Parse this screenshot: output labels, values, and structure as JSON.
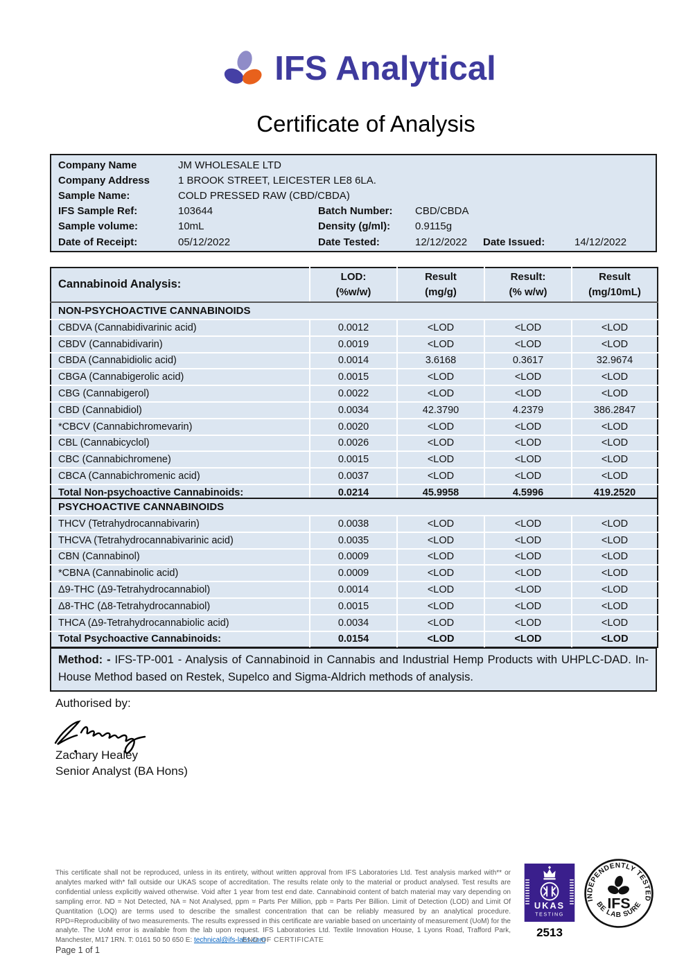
{
  "header": {
    "brand": "IFS Analytical",
    "title": "Certificate of Analysis"
  },
  "colors": {
    "brand_purple": "#3e3a9d",
    "blob_light": "#8f8cc8",
    "blob_dark": "#4540a5",
    "blob_orange": "#e8611c",
    "table_fill": "#dce6f1",
    "ukas_purple": "#3a1f8c",
    "link_blue": "#0563c1"
  },
  "info": {
    "rows": [
      {
        "label": "Company Name",
        "value": "JM WHOLESALE LTD"
      },
      {
        "label": "Company Address",
        "value": "1 BROOK STREET, LEICESTER LE8 6LA."
      },
      {
        "label": "Sample Name:",
        "value": "COLD PRESSED RAW (CBD/CBDA)"
      },
      {
        "label": "IFS Sample Ref:",
        "value": "103644",
        "label2": "Batch Number:",
        "value2": "CBD/CBDA"
      },
      {
        "label": "Sample volume:",
        "value": "10mL",
        "label2": "Density (g/ml):",
        "value2": "0.9115g"
      },
      {
        "label": "Date of Receipt:",
        "value": "05/12/2022",
        "label2": "Date Tested:",
        "value2": "12/12/2022",
        "label3": "Date Issued:",
        "value3": "14/12/2022"
      }
    ]
  },
  "analysis": {
    "title": "Cannabinoid Analysis:",
    "col_headers": [
      {
        "line1": "LOD:",
        "line2": "(%w/w)"
      },
      {
        "line1": "Result",
        "line2": "(mg/g)"
      },
      {
        "line1": "Result:",
        "line2": "(% w/w)"
      },
      {
        "line1": "Result",
        "line2": "(mg/10mL)"
      }
    ],
    "sections": [
      {
        "name": "NON-PSYCHOACTIVE CANNABINOIDS",
        "rows": [
          {
            "analyte": "CBDVA (Cannabidivarinic acid)",
            "values": [
              "0.0012",
              "<LOD",
              "<LOD",
              "<LOD"
            ]
          },
          {
            "analyte": "CBDV (Cannabidivarin)",
            "values": [
              "0.0019",
              "<LOD",
              "<LOD",
              "<LOD"
            ]
          },
          {
            "analyte": "CBDA (Cannabidiolic acid)",
            "values": [
              "0.0014",
              "3.6168",
              "0.3617",
              "32.9674"
            ]
          },
          {
            "analyte": "CBGA (Cannabigerolic acid)",
            "values": [
              "0.0015",
              "<LOD",
              "<LOD",
              "<LOD"
            ]
          },
          {
            "analyte": "CBG (Cannabigerol)",
            "values": [
              "0.0022",
              "<LOD",
              "<LOD",
              "<LOD"
            ]
          },
          {
            "analyte": "CBD (Cannabidiol)",
            "values": [
              "0.0034",
              "42.3790",
              "4.2379",
              "386.2847"
            ]
          },
          {
            "analyte": "*CBCV (Cannabichromevarin)",
            "values": [
              "0.0020",
              "<LOD",
              "<LOD",
              "<LOD"
            ]
          },
          {
            "analyte": "CBL (Cannabicyclol)",
            "values": [
              "0.0026",
              "<LOD",
              "<LOD",
              "<LOD"
            ]
          },
          {
            "analyte": "CBC (Cannabichromene)",
            "values": [
              "0.0015",
              "<LOD",
              "<LOD",
              "<LOD"
            ]
          },
          {
            "analyte": "CBCA (Cannabichromenic acid)",
            "values": [
              "0.0037",
              "<LOD",
              "<LOD",
              "<LOD"
            ]
          }
        ],
        "total": {
          "analyte": "Total Non-psychoactive Cannabinoids:",
          "values": [
            "0.0214",
            "45.9958",
            "4.5996",
            "419.2520"
          ]
        }
      },
      {
        "name": "PSYCHOACTIVE CANNABINOIDS",
        "rows": [
          {
            "analyte": "THCV (Tetrahydrocannabivarin)",
            "values": [
              "0.0038",
              "<LOD",
              "<LOD",
              "<LOD"
            ]
          },
          {
            "analyte": "THCVA (Tetrahydrocannabivarinic acid)",
            "values": [
              "0.0035",
              "<LOD",
              "<LOD",
              "<LOD"
            ]
          },
          {
            "analyte": "CBN (Cannabinol)",
            "values": [
              "0.0009",
              "<LOD",
              "<LOD",
              "<LOD"
            ]
          },
          {
            "analyte": "*CBNA (Cannabinolic acid)",
            "values": [
              "0.0009",
              "<LOD",
              "<LOD",
              "<LOD"
            ]
          },
          {
            "analyte": "Δ9-THC (Δ9-Tetrahydrocannabiol)",
            "values": [
              "0.0014",
              "<LOD",
              "<LOD",
              "<LOD"
            ]
          },
          {
            "analyte": "Δ8-THC (Δ8-Tetrahydrocannabiol)",
            "values": [
              "0.0015",
              "<LOD",
              "<LOD",
              "<LOD"
            ]
          },
          {
            "analyte": "THCA (Δ9-Tetrahydrocannabiolic acid)",
            "values": [
              "0.0034",
              "<LOD",
              "<LOD",
              "<LOD"
            ]
          }
        ],
        "total": {
          "analyte": "Total Psychoactive Cannabinoids:",
          "values": [
            "0.0154",
            "<LOD",
            "<LOD",
            "<LOD"
          ]
        }
      }
    ]
  },
  "method": {
    "label": "Method: -",
    "text": " IFS-TP-001 - Analysis of Cannabinoid in Cannabis and Industrial Hemp Products with UHPLC-DAD. In-House Method based on Restek, Supelco and Sigma-Aldrich methods of analysis."
  },
  "signature": {
    "authorised_label": "Authorised by:",
    "name": "Zachary Healey",
    "title": "Senior Analyst (BA Hons)"
  },
  "footer": {
    "disclaimer": "This certificate shall not be reproduced, unless in its entirety, without written approval from IFS Laboratories Ltd. Test analysis marked with** or analytes marked with* fall outside our UKAS scope of accreditation.  The results relate only to the material or product analysed. Test results are confidential unless explicitly waived otherwise. Void after 1 year from test end date. Cannabinoid content of batch material may vary depending on sampling error. ND = Not Detected, NA = Not Analysed, ppm = Parts Per Million, ppb = Parts Per Billion. Limit of Detection (LOD) and Limit Of Quantitation (LOQ) are terms used to describe the smallest concentration that can be reliably measured by an analytical procedure. RPD=Reproducibility of two measurements. The results expressed in this certificate are variable based on uncertainty of measurement (UoM) for the analyte. The UoM error is available from the lab upon request. IFS Laboratories Ltd. Textile Innovation House, 1 Lyons Road, Trafford Park, Manchester, M17 1RN. T: 0161 50 50 650 E: ",
    "email_link": "technical@ifs-labs.com",
    "end_label": "END OF CERTIFICATE",
    "page_label": "Page 1 of 1",
    "ukas": {
      "name": "UKAS",
      "sub": "TESTING",
      "number": "2513"
    },
    "ifs_seal": {
      "top": "INDEPENDENTLY TESTED",
      "bottom": "BE LAB SURE",
      "center": "IFS"
    }
  }
}
